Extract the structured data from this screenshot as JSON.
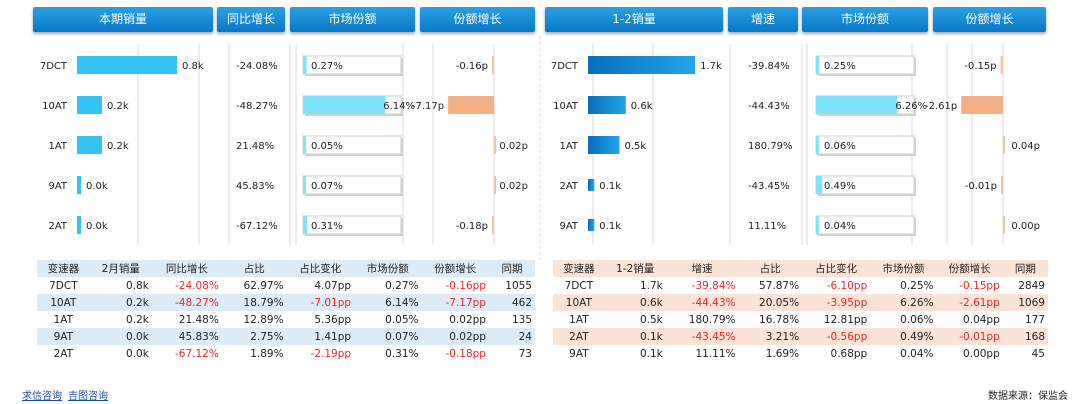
{
  "left": {
    "headers": [
      "本期销量",
      "同比增长",
      "市场份额",
      "份额增长"
    ],
    "chart_data": {
      "type": "bar",
      "categories": [
        "7DCT",
        "10AT",
        "1AT",
        "9AT",
        "2AT"
      ],
      "series": [
        {
          "name": "本期销量",
          "values": [
            0.8,
            0.2,
            0.2,
            0.0,
            0.0
          ],
          "labels": [
            "0.8k",
            "0.2k",
            "0.2k",
            "0.0k",
            "0.0k"
          ]
        },
        {
          "name": "同比增长",
          "labels": [
            "-24.08%",
            "-48.27%",
            "21.48%",
            "45.83%",
            "-67.12%"
          ]
        },
        {
          "name": "市场份额",
          "values": [
            0.27,
            6.14,
            0.05,
            0.07,
            0.31
          ],
          "labels": [
            "0.27%",
            "6.14%",
            "0.05%",
            "0.07%",
            "0.31%"
          ]
        },
        {
          "name": "份额增长",
          "values": [
            -0.16,
            -7.17,
            0.02,
            0.02,
            -0.18
          ],
          "labels": [
            "-0.16p",
            "-7.17p",
            "0.02p",
            "0.02p",
            "-0.18p"
          ]
        }
      ]
    },
    "table": {
      "columns": [
        "变速器",
        "2月销量",
        "同比增长",
        "占比",
        "占比变化",
        "市场份额",
        "份额增长",
        "同期"
      ],
      "rows": [
        [
          "7DCT",
          "0.8k",
          "-24.08%",
          "62.97%",
          "4.07pp",
          "0.27%",
          "-0.16pp",
          "1055"
        ],
        [
          "10AT",
          "0.2k",
          "-48.27%",
          "18.79%",
          "-7.01pp",
          "6.14%",
          "-7.17pp",
          "462"
        ],
        [
          "1AT",
          "0.2k",
          "21.48%",
          "12.89%",
          "5.36pp",
          "0.05%",
          "0.02pp",
          "135"
        ],
        [
          "9AT",
          "0.0k",
          "45.83%",
          "2.75%",
          "1.41pp",
          "0.07%",
          "0.02pp",
          "24"
        ],
        [
          "2AT",
          "0.0k",
          "-67.12%",
          "1.89%",
          "-2.19pp",
          "0.31%",
          "-0.18pp",
          "73"
        ]
      ]
    }
  },
  "right": {
    "headers": [
      "1-2销量",
      "增速",
      "市场份额",
      "份额增长"
    ],
    "chart_data": {
      "type": "bar",
      "categories": [
        "7DCT",
        "10AT",
        "1AT",
        "2AT",
        "9AT"
      ],
      "series": [
        {
          "name": "1-2销量",
          "values": [
            1.7,
            0.6,
            0.5,
            0.1,
            0.1
          ],
          "labels": [
            "1.7k",
            "0.6k",
            "0.5k",
            "0.1k",
            "0.1k"
          ]
        },
        {
          "name": "增速",
          "labels": [
            "-39.84%",
            "-44.43%",
            "180.79%",
            "-43.45%",
            "11.11%"
          ]
        },
        {
          "name": "市场份额",
          "values": [
            0.25,
            6.26,
            0.06,
            0.49,
            0.04
          ],
          "labels": [
            "0.25%",
            "6.26%",
            "0.06%",
            "0.49%",
            "0.04%"
          ]
        },
        {
          "name": "份额增长",
          "values": [
            -0.15,
            -2.61,
            0.04,
            -0.01,
            0.0
          ],
          "labels": [
            "-0.15p",
            "-2.61p",
            "0.04p",
            "-0.01p",
            "0.00p"
          ]
        }
      ]
    },
    "table": {
      "columns": [
        "变速器",
        "1-2销量",
        "增速",
        "占比",
        "占比变化",
        "市场份额",
        "份额增长",
        "同期"
      ],
      "rows": [
        [
          "7DCT",
          "1.7k",
          "-39.84%",
          "57.87%",
          "-6.10pp",
          "0.25%",
          "-0.15pp",
          "2849"
        ],
        [
          "10AT",
          "0.6k",
          "-44.43%",
          "20.05%",
          "-3.95pp",
          "6.26%",
          "-2.61pp",
          "1069"
        ],
        [
          "1AT",
          "0.5k",
          "180.79%",
          "16.78%",
          "12.81pp",
          "0.06%",
          "0.04pp",
          "177"
        ],
        [
          "2AT",
          "0.1k",
          "-43.45%",
          "3.21%",
          "-0.56pp",
          "0.49%",
          "-0.01pp",
          "168"
        ],
        [
          "9AT",
          "0.1k",
          "11.11%",
          "1.69%",
          "0.68pp",
          "0.04%",
          "0.00pp",
          "45"
        ]
      ]
    }
  },
  "footer": {
    "links": [
      "求信咨询",
      "吉图咨询"
    ],
    "source": "数据来源：保监会"
  },
  "colors": {
    "header": "#0a78c8",
    "bar_light": "#35c3f3",
    "share_bar": "#7fe3fb",
    "growth_bar": "#f6c4a2",
    "growth_bar_big": "#f2b084",
    "negative_text": "#e8262c"
  }
}
